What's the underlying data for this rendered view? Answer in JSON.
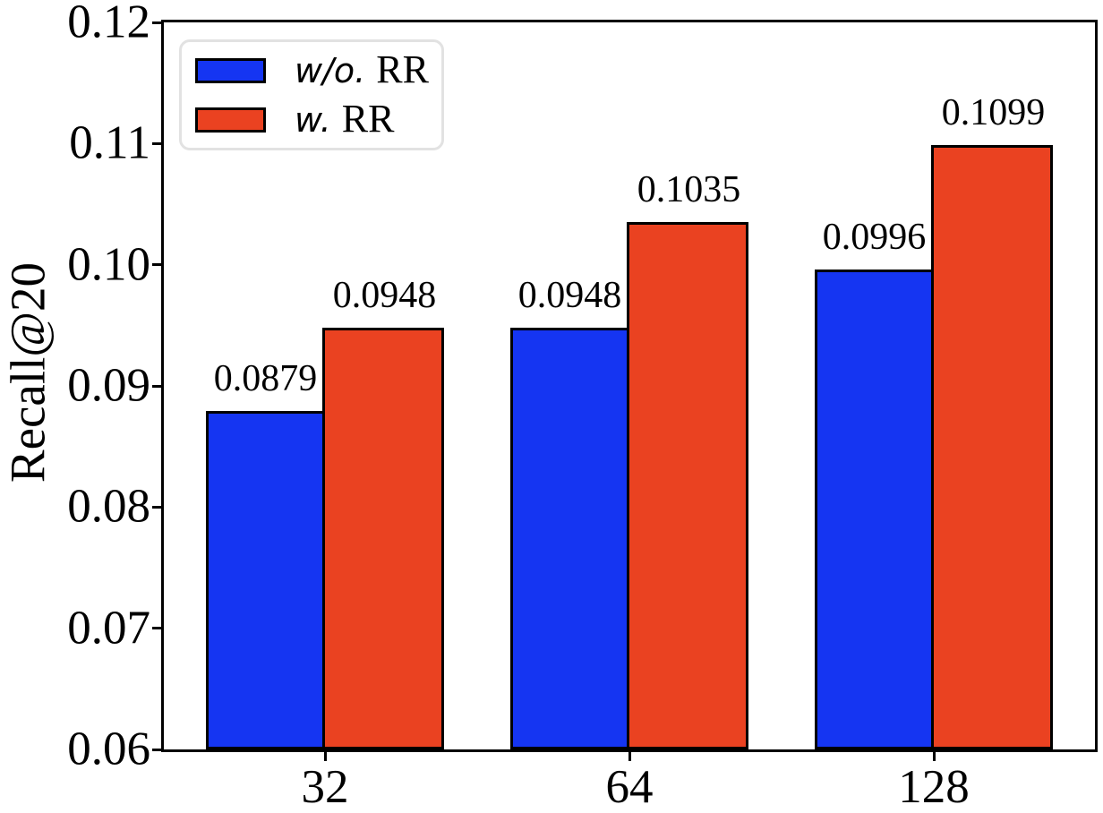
{
  "figure": {
    "background": "#ffffff",
    "text_color": "#000000"
  },
  "chart_data": {
    "type": "bar",
    "title": "",
    "xlabel": "",
    "ylabel": "Recall@20",
    "categories": [
      "32",
      "64",
      "128"
    ],
    "series": [
      {
        "name": "w/o. RR",
        "legend_prefix": "w/o.",
        "legend_suffix": "RR",
        "color": "#1535f2",
        "values": [
          0.0879,
          0.0948,
          0.0996
        ],
        "value_labels": [
          "0.0879",
          "0.0948",
          "0.0996"
        ]
      },
      {
        "name": "w. RR",
        "legend_prefix": "w.",
        "legend_suffix": "RR",
        "color": "#ea4221",
        "values": [
          0.0948,
          0.1035,
          0.1099
        ],
        "value_labels": [
          "0.0948",
          "0.1035",
          "0.1099"
        ]
      }
    ],
    "ylim": [
      0.06,
      0.12
    ],
    "yticks": [
      0.06,
      0.07,
      0.08,
      0.09,
      0.1,
      0.11,
      0.12
    ],
    "ytick_labels": [
      "0.06",
      "0.07",
      "0.08",
      "0.09",
      "0.10",
      "0.11",
      "0.12"
    ],
    "grid": false,
    "legend_position": "upper-left",
    "bar_edge_color": "#000000"
  }
}
